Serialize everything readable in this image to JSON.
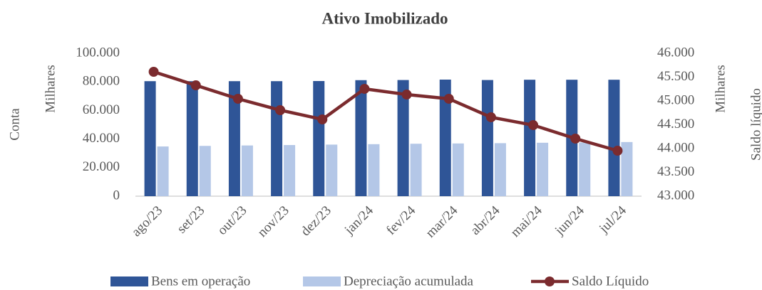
{
  "chart_data": {
    "type": "bar",
    "title": "Ativo Imobilizado",
    "y_label": "Conta",
    "y_unit": "Milhares",
    "y2_label": "Saldo líquido",
    "y2_unit": "Milhares",
    "categories": [
      "ago/23",
      "set/23",
      "out/23",
      "nov/23",
      "dez/23",
      "jan/24",
      "fev/24",
      "mar/24",
      "abr/24",
      "mai/24",
      "jun/24",
      "jul/24"
    ],
    "series": [
      {
        "name": "Bens em operação",
        "type": "bar",
        "color": "#2f5597",
        "values": [
          80500,
          80500,
          80500,
          80500,
          80600,
          81200,
          81300,
          81600,
          81300,
          81500,
          81500,
          81500
        ]
      },
      {
        "name": "Depreciação acumulada",
        "type": "bar",
        "color": "#b4c7e7",
        "values": [
          34800,
          35200,
          35500,
          35800,
          36100,
          36400,
          36700,
          36900,
          37100,
          37400,
          37600,
          37900
        ]
      },
      {
        "name": "Saldo Líquido",
        "type": "line",
        "axis": "y2",
        "color": "#7b2b2e",
        "values": [
          45612,
          45328,
          45045,
          44806,
          44612,
          45254,
          45134,
          45045,
          44657,
          44492,
          44209,
          43955
        ]
      }
    ],
    "ylim": [
      0,
      100000
    ],
    "yticks": [
      0,
      {
        "value": 20000,
        "label": "20.000"
      },
      {
        "value": 40000,
        "label": "40.000"
      },
      {
        "value": 60000,
        "label": "60.000"
      },
      {
        "value": 80000,
        "label": "80.000"
      },
      {
        "value": 100000,
        "label": "100.000"
      }
    ],
    "y2lim": [
      43000,
      46000
    ],
    "y2ticks": [
      {
        "value": 43000,
        "label": "43.000"
      },
      {
        "value": 43500,
        "label": "43.500"
      },
      {
        "value": 44000,
        "label": "44.000"
      },
      {
        "value": 44500,
        "label": "44.500"
      },
      {
        "value": 45000,
        "label": "45.000"
      },
      {
        "value": 45500,
        "label": "45.500"
      },
      {
        "value": 46000,
        "label": "46.000"
      }
    ],
    "legend": "bottom"
  }
}
